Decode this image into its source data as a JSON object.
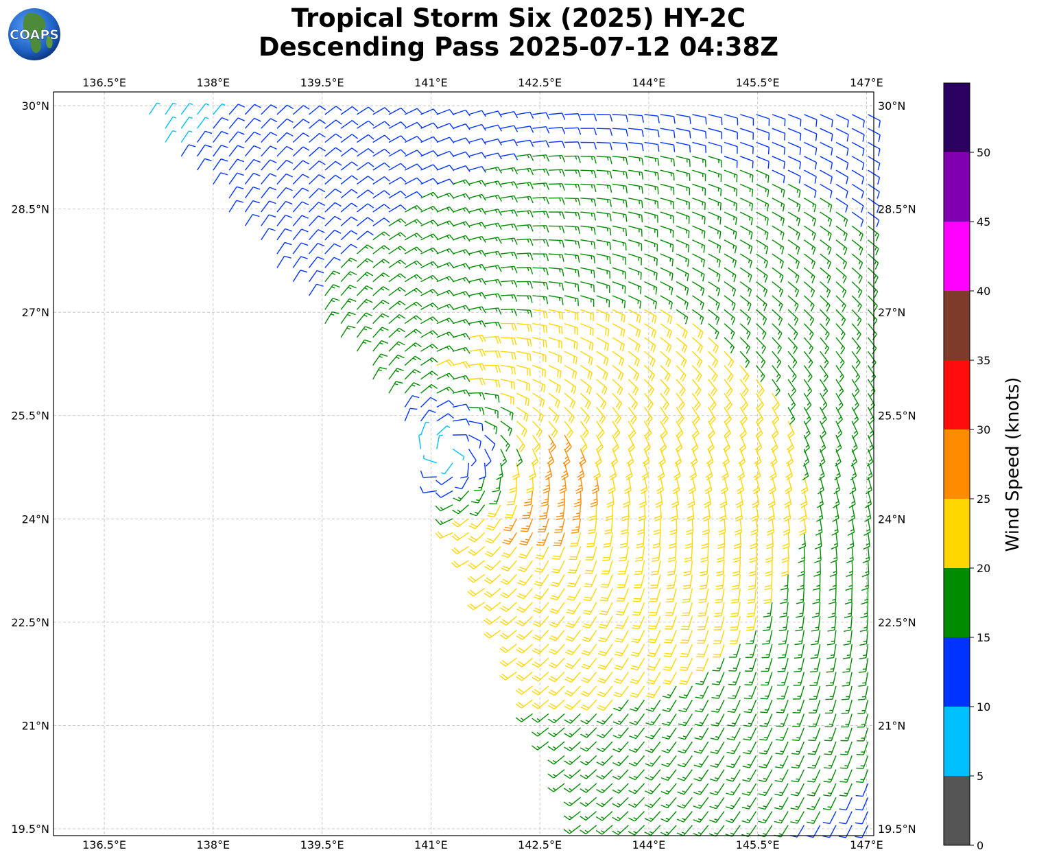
{
  "title": {
    "line1": "Tropical Storm Six (2025) HY-2C",
    "line2": "Descending Pass 2025-07-12 04:38Z"
  },
  "logo": {
    "text": "COAPS",
    "icon": "globe-logo"
  },
  "map": {
    "lon_range": [
      135.8,
      147.1
    ],
    "lat_range": [
      19.4,
      30.2
    ],
    "lon_ticks": [
      "136.5°E",
      "138°E",
      "139.5°E",
      "141°E",
      "142.5°E",
      "144°E",
      "145.5°E",
      "147°E"
    ],
    "lon_tick_values": [
      136.5,
      138,
      139.5,
      141,
      142.5,
      144,
      145.5,
      147
    ],
    "lat_ticks": [
      "30°N",
      "28.5°N",
      "27°N",
      "25.5°N",
      "24°N",
      "22.5°N",
      "21°N",
      "19.5°N"
    ],
    "lat_tick_values": [
      30,
      28.5,
      27,
      25.5,
      24,
      22.5,
      21,
      19.5
    ],
    "grid": true,
    "storm_center": {
      "lon": 141.2,
      "lat": 24.95
    },
    "swath_edge": [
      [
        136.9,
        30.0
      ],
      [
        140.6,
        25.5
      ],
      [
        143.1,
        19.4
      ]
    ],
    "field_description": "wind barbs showing cyclonic circulation around storm center"
  },
  "colorbar": {
    "label": "Wind Speed (knots)",
    "ticks": [
      "0",
      "5",
      "10",
      "15",
      "20",
      "25",
      "30",
      "35",
      "40",
      "45",
      "50"
    ],
    "tick_values": [
      0,
      5,
      10,
      15,
      20,
      25,
      30,
      35,
      40,
      45,
      50
    ],
    "bins": [
      {
        "min": 0,
        "max": 5,
        "color": "#555555"
      },
      {
        "min": 5,
        "max": 10,
        "color": "#00bfff"
      },
      {
        "min": 10,
        "max": 15,
        "color": "#0033ff"
      },
      {
        "min": 15,
        "max": 20,
        "color": "#008c00"
      },
      {
        "min": 20,
        "max": 25,
        "color": "#ffd700"
      },
      {
        "min": 25,
        "max": 30,
        "color": "#ff8c00"
      },
      {
        "min": 30,
        "max": 35,
        "color": "#ff0d0d"
      },
      {
        "min": 35,
        "max": 40,
        "color": "#7f3b2a"
      },
      {
        "min": 40,
        "max": 45,
        "color": "#ff00ff"
      },
      {
        "min": 45,
        "max": 50,
        "color": "#8000b0"
      },
      {
        "min": 50,
        "max": 55,
        "color": "#2a0060"
      }
    ]
  }
}
